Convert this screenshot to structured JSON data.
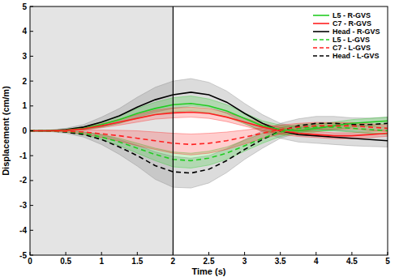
{
  "chart_data": {
    "type": "line",
    "x_label": "Time (s)",
    "y_label": "Displacement (cm/m)",
    "x": [
      0,
      0.25,
      0.5,
      0.75,
      1,
      1.25,
      1.5,
      1.75,
      2,
      2.25,
      2.5,
      2.75,
      3,
      3.25,
      3.5,
      3.75,
      4,
      4.25,
      4.5,
      4.75,
      5
    ],
    "xlim": [
      0,
      5
    ],
    "ylim": [
      -5,
      5
    ],
    "xticks": [
      0,
      0.5,
      1,
      1.5,
      2,
      2.5,
      3,
      3.5,
      4,
      4.5,
      5
    ],
    "yticks": [
      -5,
      -4,
      -3,
      -2,
      -1,
      0,
      1,
      2,
      3,
      4,
      5
    ],
    "grid": false,
    "legend": "upper right",
    "shaded_x": [
      0,
      2
    ],
    "vline_x": 2,
    "series": [
      {
        "name": "L5 - R-GVS",
        "color": "#22cc22",
        "line_style": "solid",
        "values": [
          0,
          0,
          0.03,
          0.1,
          0.25,
          0.45,
          0.7,
          0.9,
          1.05,
          1.1,
          1.0,
          0.8,
          0.5,
          0.2,
          0.05,
          0.0,
          0.1,
          0.2,
          0.3,
          0.35,
          0.4
        ],
        "error": [
          0,
          0.01,
          0.03,
          0.06,
          0.1,
          0.15,
          0.2,
          0.25,
          0.28,
          0.3,
          0.28,
          0.25,
          0.22,
          0.2,
          0.18,
          0.16,
          0.15,
          0.15,
          0.15,
          0.15,
          0.15
        ]
      },
      {
        "name": "C7 - R-GVS",
        "color": "#ff2020",
        "line_style": "solid",
        "values": [
          0,
          0,
          0.02,
          0.08,
          0.2,
          0.35,
          0.5,
          0.65,
          0.72,
          0.75,
          0.7,
          0.55,
          0.35,
          0.15,
          0.0,
          -0.1,
          -0.15,
          -0.2,
          -0.2,
          -0.15,
          -0.1
        ],
        "error": [
          0,
          0.01,
          0.02,
          0.05,
          0.08,
          0.12,
          0.15,
          0.18,
          0.2,
          0.2,
          0.2,
          0.18,
          0.16,
          0.15,
          0.14,
          0.13,
          0.12,
          0.12,
          0.12,
          0.12,
          0.12
        ]
      },
      {
        "name": "Head - R-GVS",
        "color": "#000000",
        "line_style": "solid",
        "values": [
          0,
          0,
          0.05,
          0.15,
          0.35,
          0.6,
          0.95,
          1.25,
          1.45,
          1.55,
          1.45,
          1.15,
          0.7,
          0.3,
          0.0,
          -0.15,
          -0.2,
          -0.25,
          -0.3,
          -0.35,
          -0.4
        ],
        "error": [
          0,
          0.02,
          0.05,
          0.1,
          0.2,
          0.3,
          0.4,
          0.5,
          0.55,
          0.55,
          0.5,
          0.45,
          0.4,
          0.35,
          0.3,
          0.3,
          0.3,
          0.3,
          0.3,
          0.28,
          0.25
        ]
      },
      {
        "name": "L5 - L-GVS",
        "color": "#22cc22",
        "line_style": "dashed",
        "values": [
          0,
          0,
          -0.03,
          -0.1,
          -0.25,
          -0.45,
          -0.7,
          -0.95,
          -1.15,
          -1.2,
          -1.1,
          -0.9,
          -0.6,
          -0.3,
          -0.05,
          0.1,
          0.15,
          0.15,
          0.1,
          0.05,
          0.0
        ],
        "error": [
          0,
          0.01,
          0.03,
          0.06,
          0.1,
          0.15,
          0.2,
          0.25,
          0.3,
          0.3,
          0.28,
          0.25,
          0.22,
          0.2,
          0.18,
          0.16,
          0.15,
          0.15,
          0.15,
          0.15,
          0.15
        ]
      },
      {
        "name": "C7 - L-GVS",
        "color": "#ff2020",
        "line_style": "dashed",
        "values": [
          0,
          0,
          -0.02,
          -0.05,
          -0.12,
          -0.2,
          -0.3,
          -0.4,
          -0.5,
          -0.55,
          -0.5,
          -0.4,
          -0.25,
          -0.1,
          0.05,
          0.15,
          0.2,
          0.2,
          0.2,
          0.15,
          0.1
        ],
        "error": [
          0,
          0.01,
          0.03,
          0.08,
          0.15,
          0.22,
          0.3,
          0.35,
          0.4,
          0.42,
          0.4,
          0.35,
          0.28,
          0.22,
          0.18,
          0.15,
          0.14,
          0.13,
          0.13,
          0.13,
          0.13
        ]
      },
      {
        "name": "Head - L-GVS",
        "color": "#000000",
        "line_style": "dashed",
        "values": [
          0,
          0,
          -0.05,
          -0.15,
          -0.35,
          -0.65,
          -1.0,
          -1.4,
          -1.65,
          -1.7,
          -1.55,
          -1.2,
          -0.75,
          -0.35,
          0.0,
          0.2,
          0.3,
          0.3,
          0.25,
          0.25,
          0.3
        ],
        "error": [
          0,
          0.02,
          0.05,
          0.1,
          0.2,
          0.3,
          0.42,
          0.55,
          0.62,
          0.6,
          0.55,
          0.48,
          0.4,
          0.35,
          0.3,
          0.28,
          0.28,
          0.28,
          0.27,
          0.26,
          0.25
        ]
      }
    ]
  }
}
